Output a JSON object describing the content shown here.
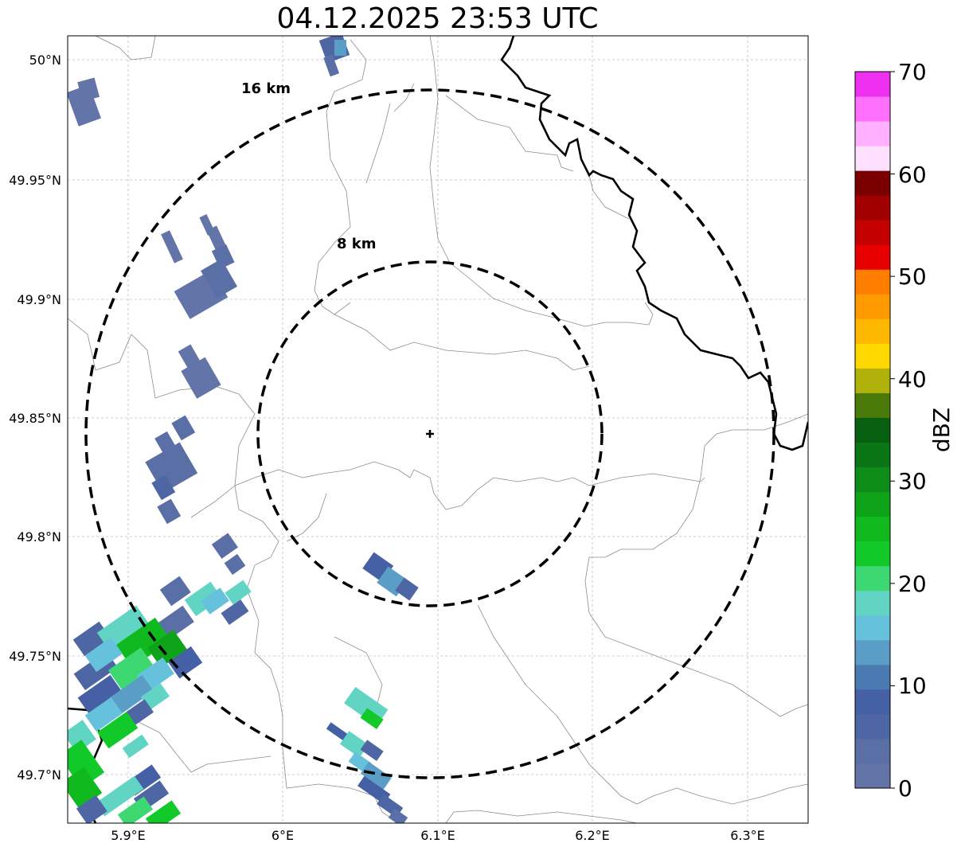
{
  "title": "04.12.2025 23:53 UTC",
  "map": {
    "lon_ticks": [
      "5.9°E",
      "6°E",
      "6.1°E",
      "6.2°E",
      "6.3°E"
    ],
    "lat_ticks": [
      "49.7°N",
      "49.75°N",
      "49.8°N",
      "49.85°N",
      "49.9°N",
      "49.95°N",
      "50°N"
    ],
    "rings": [
      {
        "radius_km": 16,
        "label": "16 km"
      },
      {
        "radius_km": 8,
        "label": "8 km"
      }
    ],
    "center_marker": "radar-site-cross",
    "grid": true
  },
  "colorbar": {
    "label": "dBZ",
    "ticks": [
      "0",
      "10",
      "20",
      "30",
      "40",
      "50",
      "60",
      "70"
    ],
    "min": 0,
    "max": 70,
    "colors": [
      "#6375a8",
      "#5a6fa6",
      "#4f66a5",
      "#4560a4",
      "#4b79b2",
      "#5a9ec8",
      "#66c2dc",
      "#62d4c4",
      "#3ed872",
      "#12c92a",
      "#10b91e",
      "#0fa31a",
      "#0d8d18",
      "#0b7616",
      "#075f10",
      "#4a7a0a",
      "#b0b10b",
      "#ffd800",
      "#ffb800",
      "#ff9a00",
      "#ff7e00",
      "#e80000",
      "#c40000",
      "#a20000",
      "#7a0000",
      "#ffe0ff",
      "#ffb0ff",
      "#ff70ff",
      "#f030f0"
    ]
  }
}
